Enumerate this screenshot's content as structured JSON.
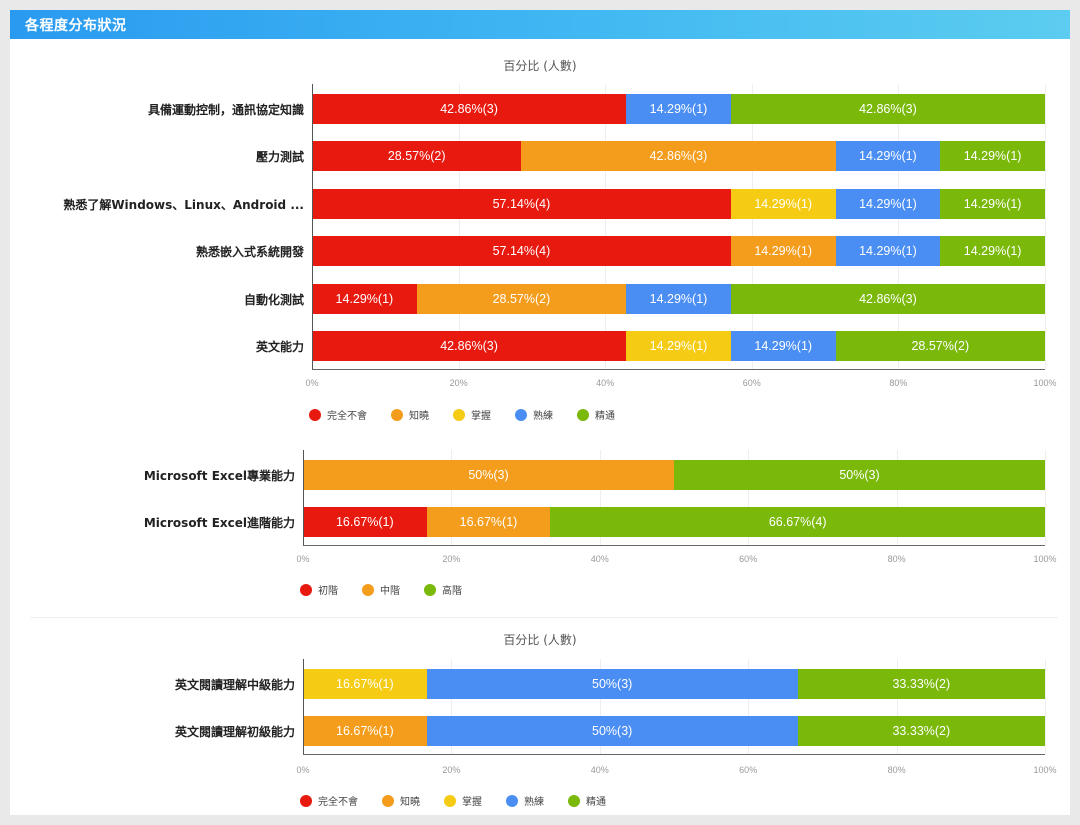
{
  "header": {
    "title": "各程度分布狀況"
  },
  "colors": {
    "完全不會": "#e8190f",
    "知曉": "#f49c1c",
    "掌握": "#f5cb14",
    "熟練": "#4a8ef4",
    "精通": "#7ab80a",
    "初階": "#e8190f",
    "中階": "#f49c1c",
    "高階": "#7ab80a"
  },
  "chart_data": [
    {
      "type": "bar",
      "orientation": "horizontal",
      "stacked": true,
      "title": "百分比 (人數)",
      "categories": [
        "具備運動控制，通訊協定知識",
        "壓力測試",
        "熟悉了解Windows、Linux、Android ...",
        "熟悉嵌入式系統開發",
        "自動化測試",
        "英文能力"
      ],
      "series": [
        {
          "name": "完全不會",
          "values": [
            42.86,
            28.57,
            57.14,
            57.14,
            14.29,
            42.86
          ],
          "labels": [
            "42.86%(3)",
            "28.57%(2)",
            "57.14%(4)",
            "57.14%(4)",
            "14.29%(1)",
            "42.86%(3)"
          ]
        },
        {
          "name": "知曉",
          "values": [
            0,
            42.86,
            0,
            14.29,
            28.57,
            0
          ],
          "labels": [
            "",
            "42.86%(3)",
            "",
            "14.29%(1)",
            "28.57%(2)",
            ""
          ]
        },
        {
          "name": "掌握",
          "values": [
            0,
            0,
            14.29,
            0,
            0,
            14.29
          ],
          "labels": [
            "",
            "",
            "14.29%(1)",
            "",
            "",
            "14.29%(1)"
          ]
        },
        {
          "name": "熟練",
          "values": [
            14.29,
            14.29,
            14.29,
            14.29,
            14.29,
            14.29
          ],
          "labels": [
            "14.29%(1)",
            "14.29%(1)",
            "14.29%(1)",
            "14.29%(1)",
            "14.29%(1)",
            "14.29%(1)"
          ]
        },
        {
          "name": "精通",
          "values": [
            42.86,
            14.29,
            14.29,
            14.29,
            42.86,
            28.57
          ],
          "labels": [
            "42.86%(3)",
            "14.29%(1)",
            "14.29%(1)",
            "14.29%(1)",
            "42.86%(3)",
            "28.57%(2)"
          ]
        }
      ],
      "xticks": [
        "0%",
        "20%",
        "40%",
        "60%",
        "80%",
        "100%"
      ],
      "xlim": [
        0,
        100
      ],
      "legend": [
        "完全不會",
        "知曉",
        "掌握",
        "熟練",
        "精通"
      ],
      "legend_position": "bottom"
    },
    {
      "type": "bar",
      "orientation": "horizontal",
      "stacked": true,
      "title": "",
      "categories": [
        "Microsoft Excel專業能力",
        "Microsoft Excel進階能力"
      ],
      "series": [
        {
          "name": "初階",
          "values": [
            0,
            16.67
          ],
          "labels": [
            "",
            "16.67%(1)"
          ]
        },
        {
          "name": "中階",
          "values": [
            50,
            16.67
          ],
          "labels": [
            "50%(3)",
            "16.67%(1)"
          ]
        },
        {
          "name": "高階",
          "values": [
            50,
            66.67
          ],
          "labels": [
            "50%(3)",
            "66.67%(4)"
          ]
        }
      ],
      "xticks": [
        "0%",
        "20%",
        "40%",
        "60%",
        "80%",
        "100%"
      ],
      "xlim": [
        0,
        100
      ],
      "legend": [
        "初階",
        "中階",
        "高階"
      ],
      "legend_position": "bottom"
    },
    {
      "type": "bar",
      "orientation": "horizontal",
      "stacked": true,
      "title": "百分比 (人數)",
      "categories": [
        "英文閱讀理解中級能力",
        "英文閱讀理解初級能力"
      ],
      "series": [
        {
          "name": "完全不會",
          "values": [
            0,
            0
          ],
          "labels": [
            "",
            ""
          ]
        },
        {
          "name": "知曉",
          "values": [
            0,
            16.67
          ],
          "labels": [
            "",
            "16.67%(1)"
          ]
        },
        {
          "name": "掌握",
          "values": [
            16.67,
            0
          ],
          "labels": [
            "16.67%(1)",
            ""
          ]
        },
        {
          "name": "熟練",
          "values": [
            50,
            50
          ],
          "labels": [
            "50%(3)",
            "50%(3)"
          ]
        },
        {
          "name": "精通",
          "values": [
            33.33,
            33.33
          ],
          "labels": [
            "33.33%(2)",
            "33.33%(2)"
          ]
        }
      ],
      "xticks": [
        "0%",
        "20%",
        "40%",
        "60%",
        "80%",
        "100%"
      ],
      "xlim": [
        0,
        100
      ],
      "legend": [
        "完全不會",
        "知曉",
        "掌握",
        "熟練",
        "精通"
      ],
      "legend_position": "bottom"
    }
  ]
}
